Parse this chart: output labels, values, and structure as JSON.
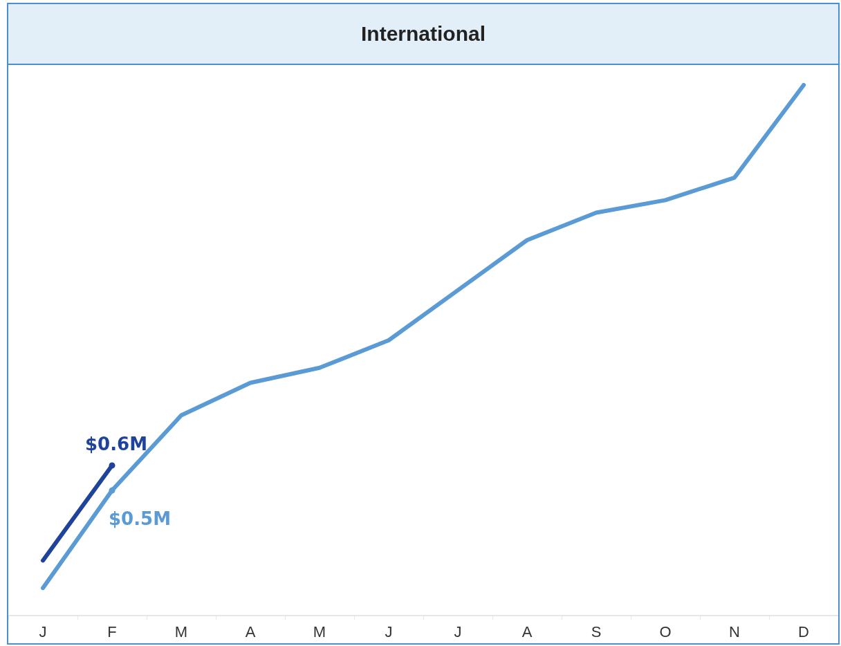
{
  "chart_data": {
    "type": "line",
    "title": "International",
    "categories": [
      "J",
      "F",
      "M",
      "A",
      "M",
      "J",
      "J",
      "A",
      "S",
      "O",
      "N",
      "D"
    ],
    "series": [
      {
        "color": "#5b9bd5",
        "values": [
          0.11,
          0.5,
          0.8,
          0.93,
          0.99,
          1.1,
          1.3,
          1.5,
          1.61,
          1.66,
          1.75,
          2.12
        ],
        "value_labels": [
          null,
          "$0.5M",
          null,
          null,
          null,
          null,
          null,
          null,
          null,
          null,
          null,
          null
        ]
      },
      {
        "color": "#1f439b",
        "values": [
          0.22,
          0.6,
          null,
          null,
          null,
          null,
          null,
          null,
          null,
          null,
          null,
          null
        ],
        "value_labels": [
          null,
          "$0.6M",
          null,
          null,
          null,
          null,
          null,
          null,
          null,
          null,
          null,
          null
        ]
      }
    ],
    "ylim": [
      0,
      2.2
    ],
    "tick_labels": "x",
    "grid": false
  }
}
